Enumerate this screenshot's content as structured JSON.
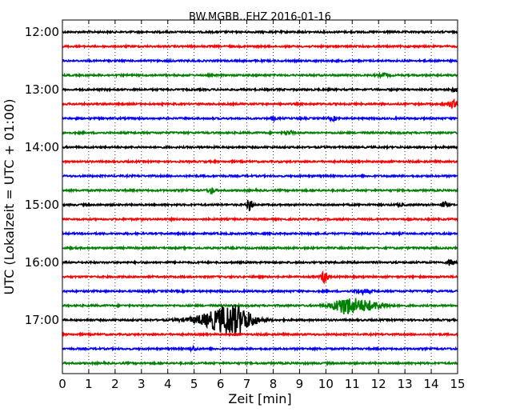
{
  "chart_data": {
    "type": "line",
    "title": "BW.MGBB..EHZ 2016-01-16",
    "xlabel": "Zeit  [min]",
    "ylabel": "UTC (Lokalzeit = UTC + 01:00)",
    "xlim": [
      0,
      15
    ],
    "x_ticks": [
      "0",
      "1",
      "2",
      "3",
      "4",
      "5",
      "6",
      "7",
      "8",
      "9",
      "10",
      "11",
      "12",
      "13",
      "14",
      "15"
    ],
    "y_ticks": [
      "12:00",
      "13:00",
      "14:00",
      "15:00",
      "16:00",
      "17:00"
    ],
    "grid": true,
    "line_colors": [
      "#000000",
      "#ff0000",
      "#0000ff",
      "#008000"
    ],
    "series": [
      {
        "label": "12:00",
        "color": "#000000",
        "events": []
      },
      {
        "label": "12:15",
        "color": "#ff0000",
        "events": []
      },
      {
        "label": "12:30",
        "color": "#0000ff",
        "events": []
      },
      {
        "label": "12:45",
        "color": "#008000",
        "events": [
          {
            "t": 12.2,
            "amp": 0.12,
            "dur": 0.2
          }
        ]
      },
      {
        "label": "13:00",
        "color": "#000000",
        "events": [
          {
            "t": 14.9,
            "amp": 0.12,
            "dur": 0.15
          }
        ]
      },
      {
        "label": "13:15",
        "color": "#ff0000",
        "events": [
          {
            "t": 14.85,
            "amp": 0.22,
            "dur": 0.25
          }
        ]
      },
      {
        "label": "13:30",
        "color": "#0000ff",
        "events": [
          {
            "t": 8.0,
            "amp": 0.12,
            "dur": 0.1
          },
          {
            "t": 10.3,
            "amp": 0.12,
            "dur": 0.15
          }
        ]
      },
      {
        "label": "13:45",
        "color": "#008000",
        "events": [
          {
            "t": 8.6,
            "amp": 0.14,
            "dur": 0.15
          }
        ]
      },
      {
        "label": "14:00",
        "color": "#000000",
        "events": []
      },
      {
        "label": "14:15",
        "color": "#ff0000",
        "events": []
      },
      {
        "label": "14:30",
        "color": "#0000ff",
        "events": []
      },
      {
        "label": "14:45",
        "color": "#008000",
        "events": [
          {
            "t": 5.65,
            "amp": 0.2,
            "dur": 0.12
          }
        ]
      },
      {
        "label": "15:00",
        "color": "#000000",
        "events": [
          {
            "t": 7.1,
            "amp": 0.45,
            "dur": 0.1
          },
          {
            "t": 12.8,
            "amp": 0.12,
            "dur": 0.1
          },
          {
            "t": 14.5,
            "amp": 0.2,
            "dur": 0.12
          }
        ]
      },
      {
        "label": "15:15",
        "color": "#ff0000",
        "events": []
      },
      {
        "label": "15:30",
        "color": "#0000ff",
        "events": []
      },
      {
        "label": "15:45",
        "color": "#008000",
        "events": []
      },
      {
        "label": "16:00",
        "color": "#000000",
        "events": [
          {
            "t": 14.75,
            "amp": 0.25,
            "dur": 0.12
          }
        ]
      },
      {
        "label": "16:15",
        "color": "#ff0000",
        "events": [
          {
            "t": 9.95,
            "amp": 0.45,
            "dur": 0.12
          }
        ]
      },
      {
        "label": "16:30",
        "color": "#0000ff",
        "events": [
          {
            "t": 11.4,
            "amp": 0.15,
            "dur": 0.3
          }
        ]
      },
      {
        "label": "16:45",
        "color": "#008000",
        "events": [
          {
            "t": 10.7,
            "amp": 0.42,
            "dur": 0.45
          },
          {
            "t": 11.4,
            "amp": 0.35,
            "dur": 0.8
          }
        ]
      },
      {
        "label": "17:00",
        "color": "#000000",
        "events": [
          {
            "t": 5.9,
            "amp": 0.45,
            "dur": 1.0
          },
          {
            "t": 6.55,
            "amp": 0.75,
            "dur": 0.7
          }
        ]
      },
      {
        "label": "17:15",
        "color": "#ff0000",
        "events": []
      },
      {
        "label": "17:30",
        "color": "#0000ff",
        "events": [
          {
            "t": 4.95,
            "amp": 0.12,
            "dur": 0.15
          }
        ]
      },
      {
        "label": "17:45",
        "color": "#008000",
        "events": []
      }
    ]
  }
}
